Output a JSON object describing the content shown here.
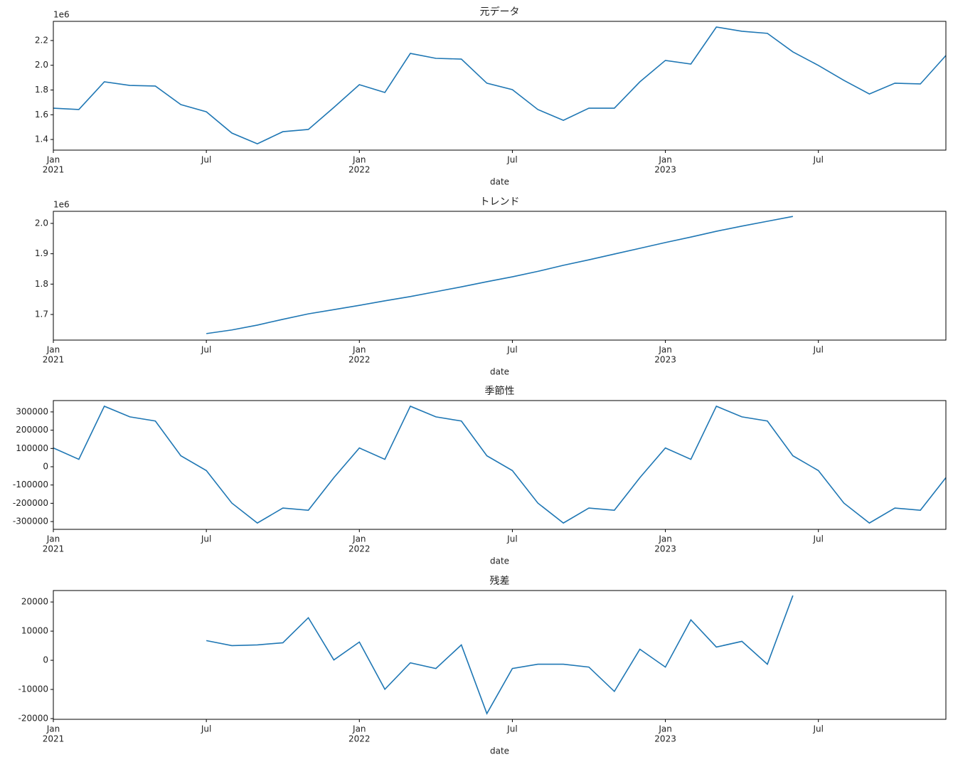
{
  "chart_data": [
    {
      "type": "line",
      "title": "元データ",
      "xlabel": "date",
      "offset_text": "1e6",
      "x": [
        "2021-01",
        "2021-02",
        "2021-03",
        "2021-04",
        "2021-05",
        "2021-06",
        "2021-07",
        "2021-08",
        "2021-09",
        "2021-10",
        "2021-11",
        "2021-12",
        "2022-01",
        "2022-02",
        "2022-03",
        "2022-04",
        "2022-05",
        "2022-06",
        "2022-07",
        "2022-08",
        "2022-09",
        "2022-10",
        "2022-11",
        "2022-12",
        "2023-01",
        "2023-02",
        "2023-03",
        "2023-04",
        "2023-05",
        "2023-06",
        "2023-07",
        "2023-08",
        "2023-09",
        "2023-10",
        "2023-11",
        "2023-12"
      ],
      "series": [
        {
          "color": "#1f77b4",
          "values": [
            1653000,
            1642000,
            1866000,
            1837000,
            1832000,
            1682000,
            1624000,
            1452000,
            1365000,
            1463000,
            1481000,
            1659000,
            1843000,
            1780000,
            2096000,
            2056000,
            2050000,
            1855000,
            1803000,
            1642000,
            1555000,
            1653000,
            1653000,
            1866000,
            2039000,
            2010000,
            2309000,
            2275000,
            2258000,
            2108000,
            1999000,
            1878000,
            1768000,
            1855000,
            1849000,
            2079000
          ]
        }
      ],
      "xlim": [
        "2021-01",
        "2023-12"
      ],
      "xticks": [
        {
          "value": "2021-01",
          "label": "Jan",
          "year": "2021"
        },
        {
          "value": "2021-07",
          "label": "Jul"
        },
        {
          "value": "2022-01",
          "label": "Jan",
          "year": "2022"
        },
        {
          "value": "2022-07",
          "label": "Jul"
        },
        {
          "value": "2023-01",
          "label": "Jan",
          "year": "2023"
        },
        {
          "value": "2023-07",
          "label": "Jul"
        }
      ],
      "ylim": [
        1314000,
        2355000
      ],
      "yticks": [
        {
          "value": 1400000,
          "label": "1.4"
        },
        {
          "value": 1600000,
          "label": "1.6"
        },
        {
          "value": 1800000,
          "label": "1.8"
        },
        {
          "value": 2000000,
          "label": "2.0"
        },
        {
          "value": 2200000,
          "label": "2.2"
        }
      ]
    },
    {
      "type": "line",
      "title": "トレンド",
      "xlabel": "date",
      "offset_text": "1e6",
      "x": [
        "2021-01",
        "2021-02",
        "2021-03",
        "2021-04",
        "2021-05",
        "2021-06",
        "2021-07",
        "2021-08",
        "2021-09",
        "2021-10",
        "2021-11",
        "2021-12",
        "2022-01",
        "2022-02",
        "2022-03",
        "2022-04",
        "2022-05",
        "2022-06",
        "2022-07",
        "2022-08",
        "2022-09",
        "2022-10",
        "2022-11",
        "2022-12",
        "2023-01",
        "2023-02",
        "2023-03",
        "2023-04",
        "2023-05",
        "2023-06",
        "2023-07",
        "2023-08",
        "2023-09",
        "2023-10",
        "2023-11",
        "2023-12"
      ],
      "series": [
        {
          "color": "#1f77b4",
          "values": [
            null,
            null,
            null,
            null,
            null,
            null,
            1637000,
            1649000,
            1665000,
            1684000,
            1702000,
            1716000,
            1730000,
            1745000,
            1759000,
            1775000,
            1791000,
            1808000,
            1824000,
            1842000,
            1862000,
            1880000,
            1899000,
            1918000,
            1937000,
            1955000,
            1974000,
            1991000,
            2007000,
            2023000,
            null,
            null,
            null,
            null,
            null,
            null
          ]
        }
      ],
      "xlim": [
        "2021-01",
        "2023-12"
      ],
      "xticks": [
        {
          "value": "2021-01",
          "label": "Jan",
          "year": "2021"
        },
        {
          "value": "2021-07",
          "label": "Jul"
        },
        {
          "value": "2022-01",
          "label": "Jan",
          "year": "2022"
        },
        {
          "value": "2022-07",
          "label": "Jul"
        },
        {
          "value": "2023-01",
          "label": "Jan",
          "year": "2023"
        },
        {
          "value": "2023-07",
          "label": "Jul"
        }
      ],
      "ylim": [
        1615600,
        2039800
      ],
      "yticks": [
        {
          "value": 1700000,
          "label": "1.7"
        },
        {
          "value": 1800000,
          "label": "1.8"
        },
        {
          "value": 1900000,
          "label": "1.9"
        },
        {
          "value": 2000000,
          "label": "2.0"
        }
      ]
    },
    {
      "type": "line",
      "title": "季節性",
      "xlabel": "date",
      "x": [
        "2021-01",
        "2021-02",
        "2021-03",
        "2021-04",
        "2021-05",
        "2021-06",
        "2021-07",
        "2021-08",
        "2021-09",
        "2021-10",
        "2021-11",
        "2021-12",
        "2022-01",
        "2022-02",
        "2022-03",
        "2022-04",
        "2022-05",
        "2022-06",
        "2022-07",
        "2022-08",
        "2022-09",
        "2022-10",
        "2022-11",
        "2022-12",
        "2023-01",
        "2023-02",
        "2023-03",
        "2023-04",
        "2023-05",
        "2023-06",
        "2023-07",
        "2023-08",
        "2023-09",
        "2023-10",
        "2023-11",
        "2023-12"
      ],
      "series": [
        {
          "color": "#1f77b4",
          "values": [
            102600,
            40600,
            331000,
            273000,
            250000,
            60000,
            -21000,
            -199000,
            -308000,
            -226000,
            -238000,
            -60000,
            102600,
            40600,
            331000,
            273000,
            250000,
            60000,
            -21000,
            -199000,
            -308000,
            -226000,
            -238000,
            -60000,
            102600,
            40600,
            331000,
            273000,
            250000,
            60000,
            -21000,
            -199000,
            -308000,
            -226000,
            -238000,
            -60000
          ]
        }
      ],
      "xlim": [
        "2021-01",
        "2023-12"
      ],
      "xticks": [
        {
          "value": "2021-01",
          "label": "Jan",
          "year": "2021"
        },
        {
          "value": "2021-07",
          "label": "Jul"
        },
        {
          "value": "2022-01",
          "label": "Jan",
          "year": "2022"
        },
        {
          "value": "2022-07",
          "label": "Jul"
        },
        {
          "value": "2023-01",
          "label": "Jan",
          "year": "2023"
        },
        {
          "value": "2023-07",
          "label": "Jul"
        }
      ],
      "ylim": [
        -342600,
        362000
      ],
      "yticks": [
        -300000,
        -200000,
        -100000,
        0,
        100000,
        200000,
        300000
      ]
    },
    {
      "type": "line",
      "title": "残差",
      "xlabel": "date",
      "x": [
        "2021-01",
        "2021-02",
        "2021-03",
        "2021-04",
        "2021-05",
        "2021-06",
        "2021-07",
        "2021-08",
        "2021-09",
        "2021-10",
        "2021-11",
        "2021-12",
        "2022-01",
        "2022-02",
        "2022-03",
        "2022-04",
        "2022-05",
        "2022-06",
        "2022-07",
        "2022-08",
        "2022-09",
        "2022-10",
        "2022-11",
        "2022-12",
        "2023-01",
        "2023-02",
        "2023-03",
        "2023-04",
        "2023-05",
        "2023-06",
        "2023-07",
        "2023-08",
        "2023-09",
        "2023-10",
        "2023-11",
        "2023-12"
      ],
      "series": [
        {
          "color": "#1f77b4",
          "values": [
            null,
            null,
            null,
            null,
            null,
            null,
            6750,
            5030,
            5280,
            6010,
            14600,
            120,
            6260,
            -9940,
            -860,
            -2820,
            5280,
            -18280,
            -2820,
            -1350,
            -1350,
            -2330,
            -10670,
            3800,
            -2330,
            13870,
            4540,
            6500,
            -1350,
            22210,
            null,
            null,
            null,
            null,
            null,
            null
          ]
        }
      ],
      "xlim": [
        "2021-01",
        "2023-12"
      ],
      "xticks": [
        {
          "value": "2021-01",
          "label": "Jan",
          "year": "2021"
        },
        {
          "value": "2021-07",
          "label": "Jul"
        },
        {
          "value": "2022-01",
          "label": "Jan",
          "year": "2022"
        },
        {
          "value": "2022-07",
          "label": "Jul"
        },
        {
          "value": "2023-01",
          "label": "Jan",
          "year": "2023"
        },
        {
          "value": "2023-07",
          "label": "Jul"
        }
      ],
      "ylim": [
        -20245,
        23930
      ],
      "yticks": [
        -20000,
        -10000,
        0,
        10000,
        20000
      ]
    }
  ]
}
